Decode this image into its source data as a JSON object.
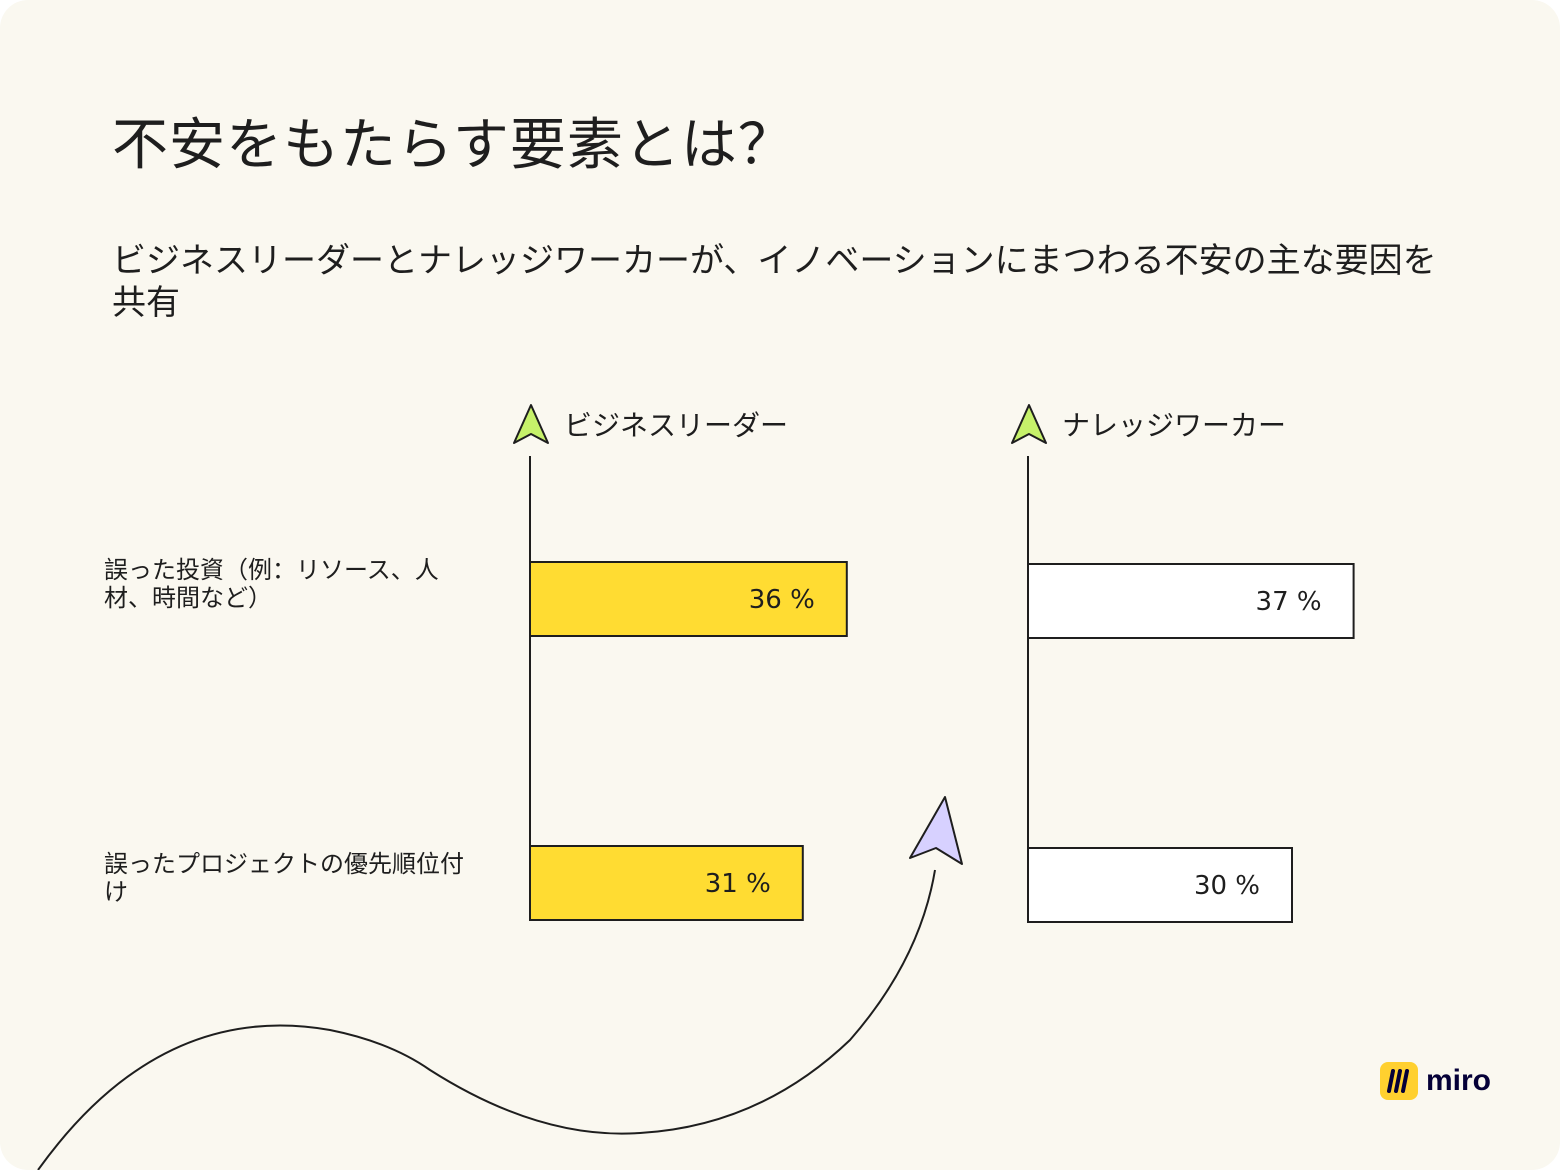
{
  "title": "不安をもたらす要素とは？",
  "subtitle": "ビジネスリーダーとナレッジワーカーが、イノベーションにまつわる不安の主な要因を共有",
  "brand": {
    "name": "miro",
    "color": "#ffd02f"
  },
  "chart_data": {
    "type": "bar",
    "orientation": "horizontal",
    "categories": [
      "誤った投資（例：リソース、人材、時間など）",
      "誤ったプロジェクトの優先順位付け"
    ],
    "series": [
      {
        "name": "ビジネスリーダー",
        "values": [
          36,
          31
        ],
        "labels": [
          "36 %",
          "31 %"
        ],
        "color": "#ffdc32",
        "marker_color": "#c6f16a"
      },
      {
        "name": "ナレッジワーカー",
        "values": [
          37,
          30
        ],
        "labels": [
          "37 %",
          "30 %"
        ],
        "color": "#ffffff",
        "marker_color": "#c6f16a"
      }
    ],
    "unit": "%",
    "grid": false
  }
}
